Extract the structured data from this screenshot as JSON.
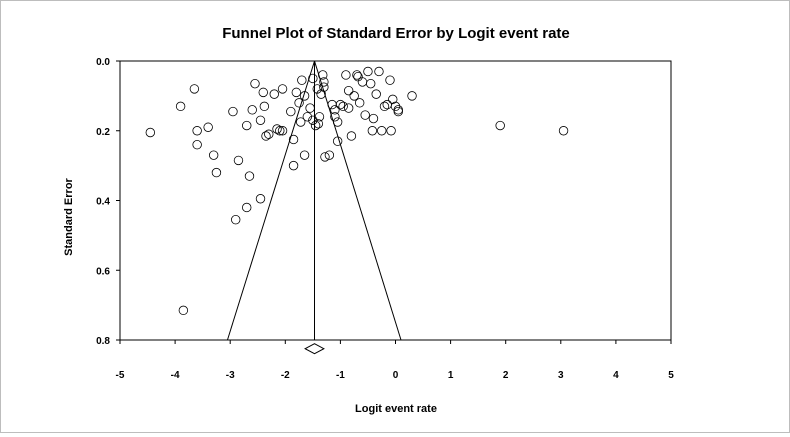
{
  "chart_data": {
    "type": "scatter",
    "title": "Funnel Plot of Standard Error by Logit event rate",
    "xlabel": "Logit event rate",
    "ylabel": "Standard Error",
    "xlim": [
      -5,
      5
    ],
    "ylim": [
      0.8,
      0.0
    ],
    "y_inverted": true,
    "x_ticks": [
      "-5",
      "-4",
      "-3",
      "-2",
      "-1",
      "0",
      "1",
      "2",
      "3",
      "4",
      "5"
    ],
    "y_ticks": [
      "0.0",
      "0.2",
      "0.4",
      "0.6",
      "0.8"
    ],
    "grid": false,
    "legend": "none",
    "summary_effect": -1.47,
    "funnel": {
      "apex": [
        -1.47,
        0.0
      ],
      "base_left": [
        -3.05,
        0.8
      ],
      "base_right": [
        0.1,
        0.8
      ]
    },
    "summary_diamond": {
      "center": -1.47,
      "lower": -1.64,
      "upper": -1.3,
      "y": 0.825
    },
    "points": [
      [
        -4.45,
        0.205
      ],
      [
        -3.9,
        0.13
      ],
      [
        -3.65,
        0.08
      ],
      [
        -3.6,
        0.2
      ],
      [
        -3.6,
        0.24
      ],
      [
        -3.4,
        0.19
      ],
      [
        -3.3,
        0.27
      ],
      [
        -3.25,
        0.32
      ],
      [
        -3.85,
        0.715
      ],
      [
        -2.95,
        0.145
      ],
      [
        -2.85,
        0.285
      ],
      [
        -2.7,
        0.185
      ],
      [
        -2.65,
        0.33
      ],
      [
        -2.7,
        0.42
      ],
      [
        -2.9,
        0.455
      ],
      [
        -2.45,
        0.395
      ],
      [
        -2.6,
        0.14
      ],
      [
        -2.55,
        0.065
      ],
      [
        -2.45,
        0.17
      ],
      [
        -2.4,
        0.09
      ],
      [
        -2.38,
        0.13
      ],
      [
        -2.35,
        0.215
      ],
      [
        -2.3,
        0.21
      ],
      [
        -2.2,
        0.095
      ],
      [
        -2.15,
        0.195
      ],
      [
        -2.1,
        0.2
      ],
      [
        -2.05,
        0.2
      ],
      [
        -2.05,
        0.08
      ],
      [
        -1.9,
        0.145
      ],
      [
        -1.85,
        0.3
      ],
      [
        -1.8,
        0.09
      ],
      [
        -1.85,
        0.225
      ],
      [
        -1.75,
        0.12
      ],
      [
        -1.72,
        0.175
      ],
      [
        -1.7,
        0.055
      ],
      [
        -1.65,
        0.1
      ],
      [
        -1.65,
        0.27
      ],
      [
        -1.6,
        0.16
      ],
      [
        -1.55,
        0.135
      ],
      [
        -1.5,
        0.05
      ],
      [
        -1.5,
        0.17
      ],
      [
        -1.45,
        0.185
      ],
      [
        -1.42,
        0.08
      ],
      [
        -1.4,
        0.18
      ],
      [
        -1.38,
        0.16
      ],
      [
        -1.35,
        0.095
      ],
      [
        -1.32,
        0.04
      ],
      [
        -1.3,
        0.06
      ],
      [
        -1.3,
        0.075
      ],
      [
        -1.28,
        0.275
      ],
      [
        -1.2,
        0.27
      ],
      [
        -1.15,
        0.125
      ],
      [
        -1.1,
        0.14
      ],
      [
        -1.1,
        0.16
      ],
      [
        -1.05,
        0.175
      ],
      [
        -1.05,
        0.23
      ],
      [
        -1.0,
        0.125
      ],
      [
        -0.95,
        0.13
      ],
      [
        -0.9,
        0.04
      ],
      [
        -0.85,
        0.085
      ],
      [
        -0.85,
        0.135
      ],
      [
        -0.8,
        0.215
      ],
      [
        -0.75,
        0.1
      ],
      [
        -0.7,
        0.04
      ],
      [
        -0.68,
        0.045
      ],
      [
        -0.65,
        0.12
      ],
      [
        -0.6,
        0.06
      ],
      [
        -0.55,
        0.155
      ],
      [
        -0.5,
        0.03
      ],
      [
        -0.45,
        0.065
      ],
      [
        -0.42,
        0.2
      ],
      [
        -0.4,
        0.165
      ],
      [
        -0.35,
        0.095
      ],
      [
        -0.3,
        0.03
      ],
      [
        -0.25,
        0.2
      ],
      [
        -0.2,
        0.13
      ],
      [
        -0.15,
        0.125
      ],
      [
        -0.1,
        0.055
      ],
      [
        -0.08,
        0.2
      ],
      [
        -0.05,
        0.11
      ],
      [
        0.0,
        0.13
      ],
      [
        0.05,
        0.14
      ],
      [
        0.05,
        0.145
      ],
      [
        0.3,
        0.1
      ],
      [
        1.9,
        0.185
      ],
      [
        3.05,
        0.2
      ]
    ]
  }
}
